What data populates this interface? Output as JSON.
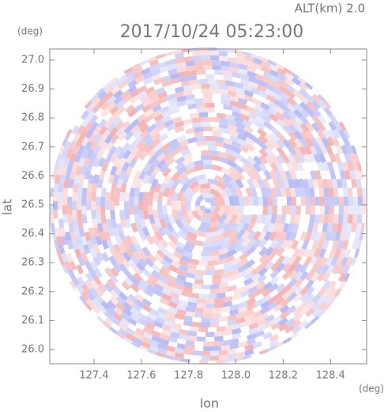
{
  "chart_data": {
    "type": "radar-ppi",
    "title": "2017/10/24 05:23:00",
    "altitude_label": "ALT(km) 2.0",
    "x_label": "lon",
    "y_label": "lat",
    "x_unit": "(deg)",
    "y_unit": "(deg)",
    "xlim": [
      127.213,
      128.553
    ],
    "ylim": [
      25.951,
      27.038
    ],
    "xticks": [
      127.4,
      127.6,
      127.8,
      {
        "value": 128.0,
        "label": "128.0"
      },
      128.2,
      128.4
    ],
    "yticks": [
      {
        "value": 26.0,
        "label": "26.0"
      },
      26.1,
      26.2,
      26.3,
      26.4,
      26.5,
      26.6,
      26.7,
      26.8,
      26.9,
      {
        "value": 27.0,
        "label": "27.0"
      }
    ]
  }
}
